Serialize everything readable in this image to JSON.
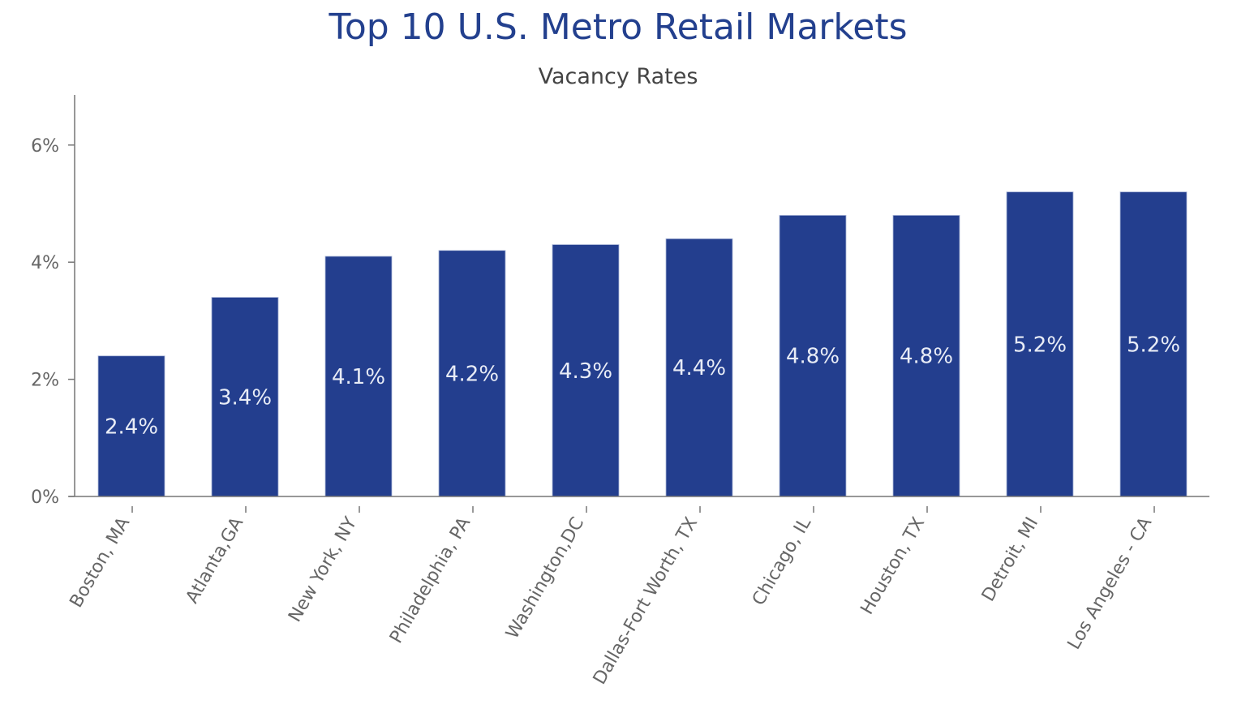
{
  "chart_data": {
    "type": "bar",
    "title": "Top 10 U.S. Metro Retail Markets",
    "subtitle": "Vacancy Rates",
    "xlabel": "",
    "ylabel": "",
    "ylim": [
      0,
      6.8
    ],
    "yticks": [
      0,
      2,
      4,
      6
    ],
    "ytick_labels": [
      "0%",
      "2%",
      "4%",
      "6%"
    ],
    "grid": false,
    "bar_color": "#233e8e",
    "categories": [
      "Boston, MA",
      "Atlanta,GA",
      "New York, NY",
      "Philadelphia, PA",
      "Washington,DC",
      "Dallas-Fort Worth, TX",
      "Chicago, IL",
      "Houston, TX",
      "Detroit, MI",
      "Los Angeles - CA"
    ],
    "values": [
      2.4,
      3.4,
      4.1,
      4.2,
      4.3,
      4.4,
      4.8,
      4.8,
      5.2,
      5.2
    ],
    "data_labels": [
      "2.4%",
      "3.4%",
      "4.1%",
      "4.2%",
      "4.3%",
      "4.4%",
      "4.8%",
      "4.8%",
      "5.2%",
      "5.2%"
    ]
  }
}
